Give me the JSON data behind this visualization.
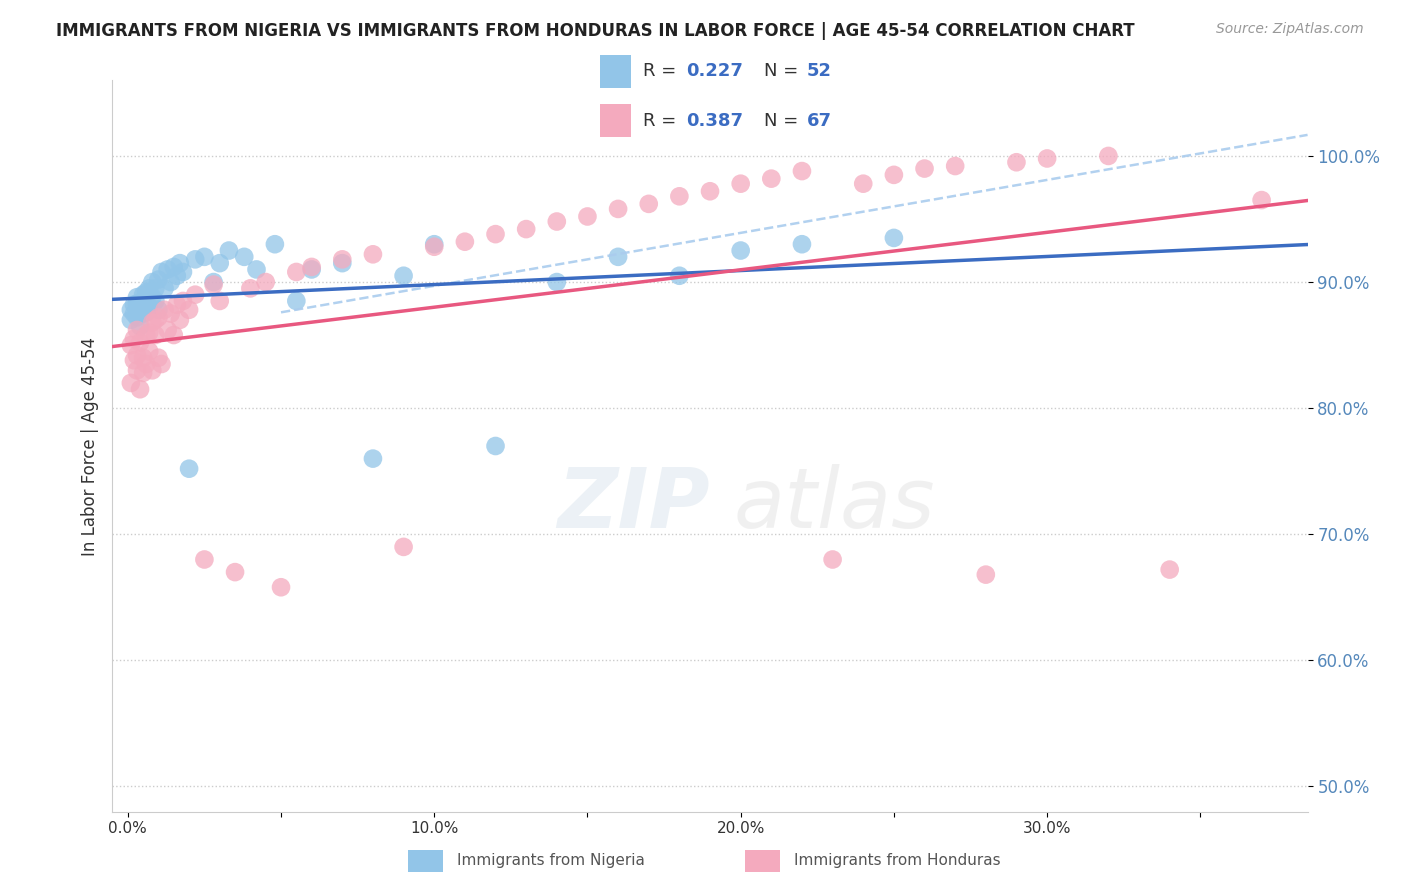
{
  "title": "IMMIGRANTS FROM NIGERIA VS IMMIGRANTS FROM HONDURAS IN LABOR FORCE | AGE 45-54 CORRELATION CHART",
  "source": "Source: ZipAtlas.com",
  "ylabel": "In Labor Force | Age 45-54",
  "legend_label1": "Immigrants from Nigeria",
  "legend_label2": "Immigrants from Honduras",
  "R1": 0.227,
  "N1": 52,
  "R2": 0.387,
  "N2": 67,
  "color_nigeria": "#92C5E8",
  "color_honduras": "#F4AABE",
  "color_nigeria_line": "#3B6CC2",
  "color_honduras_line": "#E85880",
  "color_dashed": "#AACCEE",
  "nigeria_x": [
    0.001,
    0.001,
    0.002,
    0.002,
    0.003,
    0.003,
    0.003,
    0.004,
    0.004,
    0.005,
    0.005,
    0.005,
    0.006,
    0.006,
    0.007,
    0.007,
    0.008,
    0.008,
    0.009,
    0.009,
    0.01,
    0.01,
    0.011,
    0.012,
    0.013,
    0.014,
    0.015,
    0.016,
    0.017,
    0.018,
    0.02,
    0.022,
    0.025,
    0.028,
    0.03,
    0.033,
    0.038,
    0.042,
    0.048,
    0.055,
    0.06,
    0.07,
    0.08,
    0.09,
    0.1,
    0.12,
    0.14,
    0.16,
    0.18,
    0.2,
    0.22,
    0.25
  ],
  "nigeria_y": [
    0.87,
    0.878,
    0.882,
    0.875,
    0.883,
    0.888,
    0.872,
    0.88,
    0.865,
    0.89,
    0.875,
    0.885,
    0.892,
    0.876,
    0.895,
    0.88,
    0.888,
    0.9,
    0.895,
    0.885,
    0.902,
    0.878,
    0.908,
    0.895,
    0.91,
    0.9,
    0.912,
    0.905,
    0.915,
    0.908,
    0.752,
    0.918,
    0.92,
    0.9,
    0.915,
    0.925,
    0.92,
    0.91,
    0.93,
    0.885,
    0.91,
    0.915,
    0.76,
    0.905,
    0.93,
    0.77,
    0.9,
    0.92,
    0.905,
    0.925,
    0.93,
    0.935
  ],
  "honduras_x": [
    0.001,
    0.001,
    0.002,
    0.002,
    0.003,
    0.003,
    0.003,
    0.004,
    0.004,
    0.005,
    0.005,
    0.006,
    0.006,
    0.007,
    0.007,
    0.008,
    0.008,
    0.009,
    0.009,
    0.01,
    0.01,
    0.011,
    0.012,
    0.013,
    0.014,
    0.015,
    0.016,
    0.017,
    0.018,
    0.02,
    0.022,
    0.025,
    0.028,
    0.03,
    0.035,
    0.04,
    0.045,
    0.05,
    0.055,
    0.06,
    0.07,
    0.08,
    0.09,
    0.1,
    0.11,
    0.12,
    0.13,
    0.14,
    0.15,
    0.16,
    0.17,
    0.18,
    0.19,
    0.2,
    0.21,
    0.22,
    0.23,
    0.24,
    0.25,
    0.26,
    0.27,
    0.28,
    0.29,
    0.3,
    0.32,
    0.34,
    0.37
  ],
  "honduras_y": [
    0.85,
    0.82,
    0.855,
    0.838,
    0.862,
    0.842,
    0.83,
    0.852,
    0.815,
    0.84,
    0.828,
    0.858,
    0.835,
    0.86,
    0.845,
    0.868,
    0.83,
    0.87,
    0.858,
    0.84,
    0.872,
    0.835,
    0.878,
    0.862,
    0.875,
    0.858,
    0.882,
    0.87,
    0.885,
    0.878,
    0.89,
    0.68,
    0.898,
    0.885,
    0.67,
    0.895,
    0.9,
    0.658,
    0.908,
    0.912,
    0.918,
    0.922,
    0.69,
    0.928,
    0.932,
    0.938,
    0.942,
    0.948,
    0.952,
    0.958,
    0.962,
    0.968,
    0.972,
    0.978,
    0.982,
    0.988,
    0.68,
    0.978,
    0.985,
    0.99,
    0.992,
    0.668,
    0.995,
    0.998,
    1.0,
    0.672,
    0.965
  ],
  "xlim": [
    -0.005,
    0.385
  ],
  "ylim": [
    0.48,
    1.06
  ],
  "ytick_vals": [
    0.5,
    0.6,
    0.7,
    0.8,
    0.9,
    1.0
  ],
  "ytick_labels": [
    "50.0%",
    "60.0%",
    "70.0%",
    "80.0%",
    "90.0%",
    "100.0%"
  ],
  "xtick_vals": [
    0.0,
    0.05,
    0.1,
    0.15,
    0.2,
    0.25,
    0.3,
    0.35
  ],
  "xtick_labels": [
    "0.0%",
    "",
    "10.0%",
    "",
    "20.0%",
    "",
    "30.0%",
    ""
  ],
  "yaxis_tick_color": "#5588BB",
  "xaxis_tick_color": "#333333",
  "title_fontsize": 12,
  "source_fontsize": 10
}
